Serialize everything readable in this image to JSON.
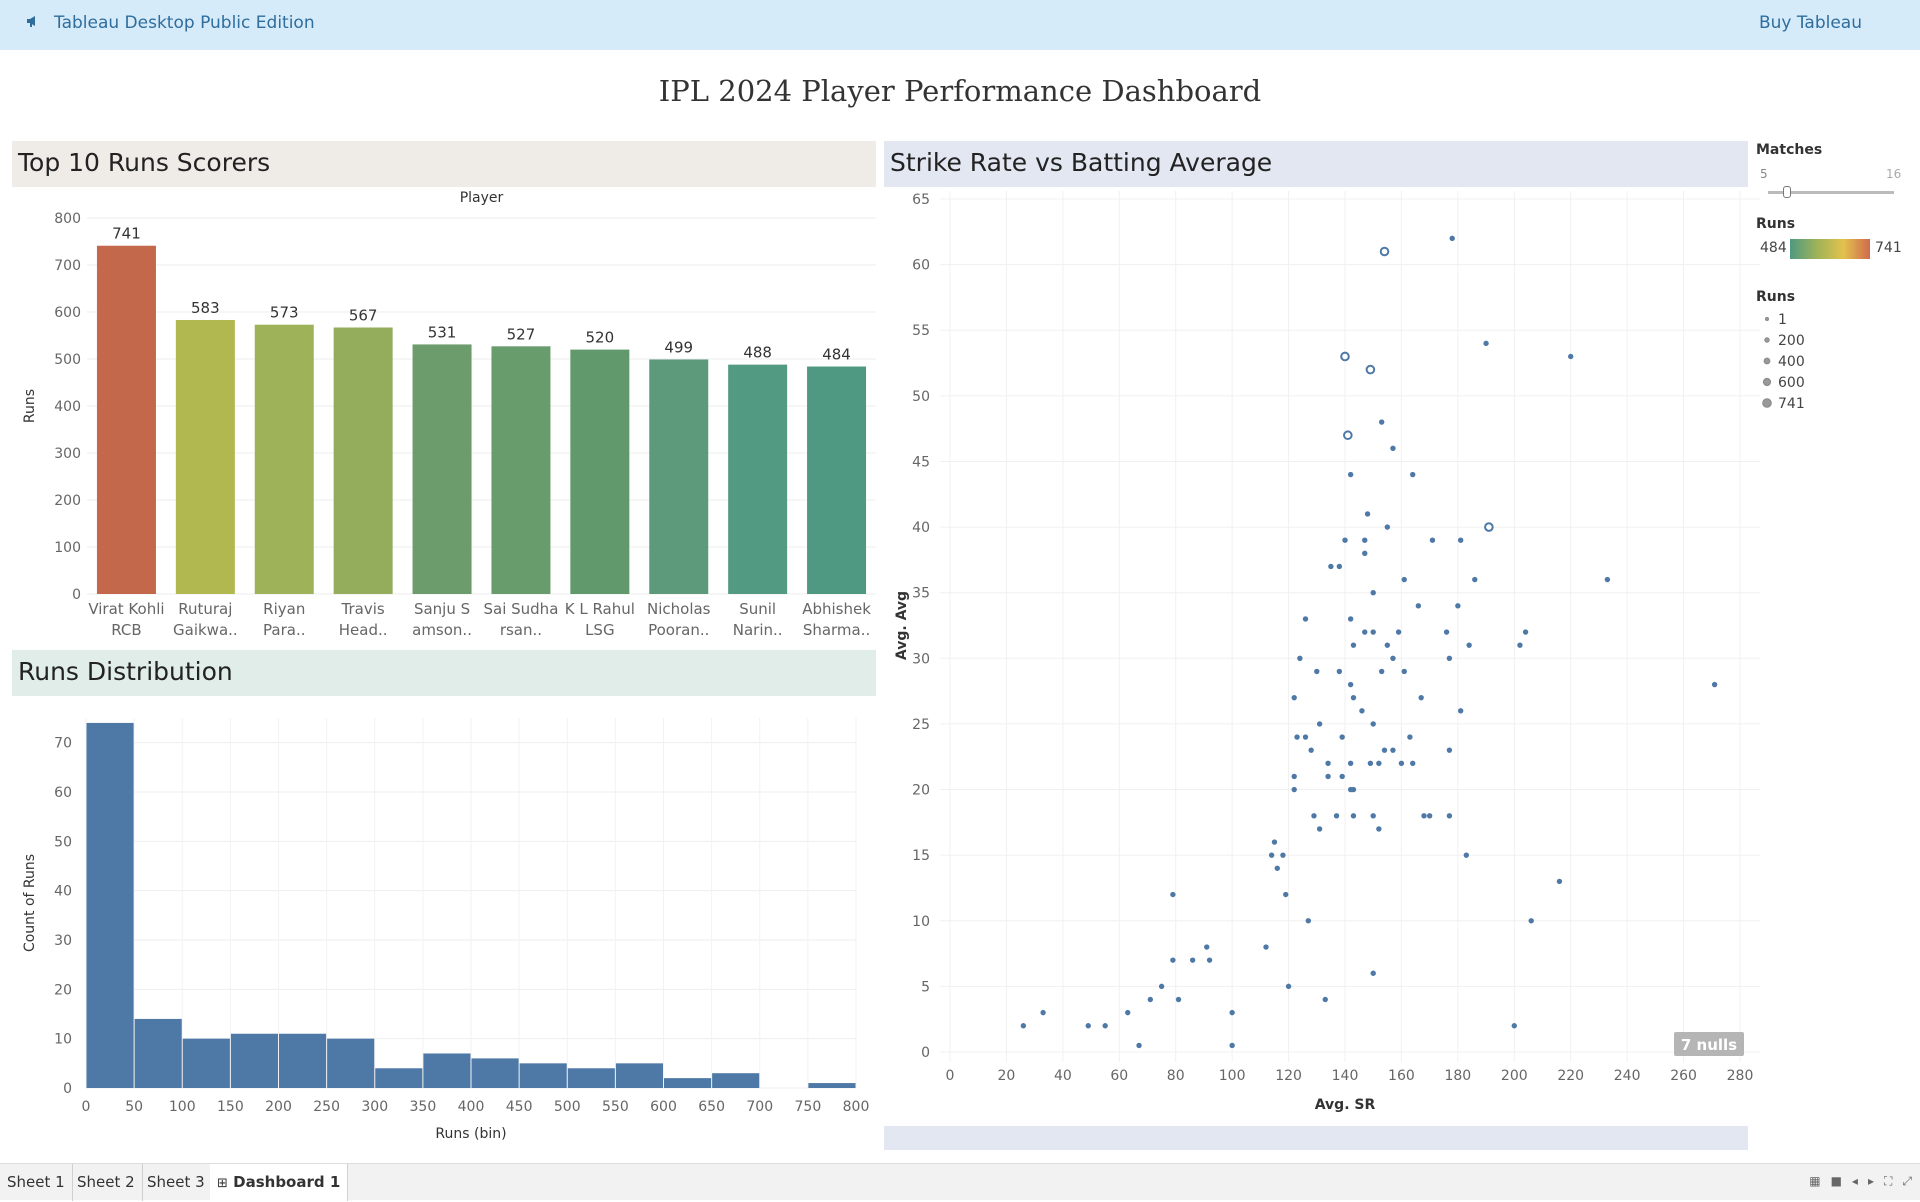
{
  "app": {
    "title": "Tableau Desktop Public Edition",
    "buy": "Buy Tableau"
  },
  "dashboard": {
    "title": "IPL 2024 Player Performance Dashboard"
  },
  "panels": {
    "top10": "Top 10 Runs Scorers",
    "scatter": "Strike Rate vs Batting Average",
    "distribution": "Runs Distribution"
  },
  "legend": {
    "matches_title": "Matches",
    "matches_min": "5",
    "matches_max": "16",
    "matches_value": 6,
    "color_title": "Runs",
    "color_min": "484",
    "color_max": "741",
    "size_title": "Runs",
    "size_items": [
      "1",
      "200",
      "400",
      "600",
      "741"
    ]
  },
  "tabs": [
    "Sheet 1",
    "Sheet 2",
    "Sheet 3",
    "Dashboard 1"
  ],
  "active_tab": "Dashboard 1",
  "colors": {
    "accent": "#2e6d9c",
    "bar": "#4e79a7",
    "scatter": "#4e79a7"
  },
  "chart_data": [
    {
      "type": "bar",
      "title": "Top 10 Runs Scorers",
      "xlabel": "Player",
      "ylabel": "Runs",
      "ylim": [
        0,
        800
      ],
      "yticks": [
        0,
        100,
        200,
        300,
        400,
        500,
        600,
        700,
        800
      ],
      "categories": [
        [
          "Virat Kohli",
          "RCB"
        ],
        [
          "Ruturaj",
          "Gaikwa.."
        ],
        [
          "Riyan",
          "Para.."
        ],
        [
          "Travis",
          "Head.."
        ],
        [
          "Sanju S",
          "amson.."
        ],
        [
          "Sai Sudha",
          "rsan.."
        ],
        [
          "K L Rahul",
          "LSG"
        ],
        [
          "Nicholas",
          "Pooran.."
        ],
        [
          "Sunil",
          "Narin.."
        ],
        [
          "Abhishek",
          "Sharma.."
        ]
      ],
      "values": [
        741,
        583,
        573,
        567,
        531,
        527,
        520,
        499,
        488,
        484
      ],
      "colors": [
        "#c4684c",
        "#b0b84f",
        "#9eb259",
        "#93ad5c",
        "#6c9c6c",
        "#699c6c",
        "#61996c",
        "#5d9a7c",
        "#539a82",
        "#4f9983"
      ]
    },
    {
      "type": "bar",
      "title": "Runs Distribution",
      "xlabel": "Runs (bin)",
      "ylabel": "Count of Runs",
      "xlim": [
        0,
        800
      ],
      "ylim": [
        0,
        75
      ],
      "xticks": [
        0,
        50,
        100,
        150,
        200,
        250,
        300,
        350,
        400,
        450,
        500,
        550,
        600,
        650,
        700,
        750,
        800
      ],
      "yticks": [
        0,
        10,
        20,
        30,
        40,
        50,
        60,
        70
      ],
      "bin_width": 50,
      "bins": [
        0,
        50,
        100,
        150,
        200,
        250,
        300,
        350,
        400,
        450,
        500,
        550,
        600,
        650,
        700,
        750
      ],
      "values": [
        74,
        14,
        10,
        11,
        11,
        10,
        4,
        7,
        6,
        5,
        4,
        5,
        2,
        3,
        0,
        1
      ]
    },
    {
      "type": "scatter",
      "title": "Strike Rate vs Batting Average",
      "xlabel": "Avg. SR",
      "ylabel": "Avg. Avg",
      "xlim": [
        0,
        280
      ],
      "ylim": [
        0,
        65
      ],
      "xticks": [
        0,
        20,
        40,
        60,
        80,
        100,
        120,
        140,
        160,
        180,
        200,
        220,
        240,
        260,
        280
      ],
      "yticks": [
        0,
        5,
        10,
        15,
        20,
        25,
        30,
        35,
        40,
        45,
        50,
        55,
        60,
        65
      ],
      "nulls_label": "7 nulls",
      "points": [
        [
          154,
          61,
          2
        ],
        [
          178,
          62,
          1
        ],
        [
          190,
          54,
          1
        ],
        [
          220,
          53,
          1
        ],
        [
          140,
          53,
          2
        ],
        [
          149,
          52,
          2
        ],
        [
          153,
          48,
          1
        ],
        [
          141,
          47,
          2
        ],
        [
          157,
          46,
          1
        ],
        [
          164,
          44,
          1
        ],
        [
          142,
          44,
          1
        ],
        [
          148,
          41,
          1
        ],
        [
          155,
          40,
          1
        ],
        [
          191,
          40,
          2
        ],
        [
          140,
          39,
          1
        ],
        [
          147,
          39,
          1
        ],
        [
          171,
          39,
          1
        ],
        [
          181,
          39,
          1
        ],
        [
          147,
          38,
          1
        ],
        [
          135,
          37,
          1
        ],
        [
          138,
          37,
          1
        ],
        [
          161,
          36,
          1
        ],
        [
          186,
          36,
          1
        ],
        [
          233,
          36,
          1
        ],
        [
          150,
          35,
          1
        ],
        [
          166,
          34,
          1
        ],
        [
          180,
          34,
          1
        ],
        [
          126,
          33,
          1
        ],
        [
          142,
          33,
          1
        ],
        [
          147,
          32,
          1
        ],
        [
          150,
          32,
          1
        ],
        [
          159,
          32,
          1
        ],
        [
          176,
          32,
          1
        ],
        [
          204,
          32,
          1
        ],
        [
          143,
          31,
          1
        ],
        [
          155,
          31,
          1
        ],
        [
          184,
          31,
          1
        ],
        [
          202,
          31,
          1
        ],
        [
          124,
          30,
          1
        ],
        [
          157,
          30,
          1
        ],
        [
          177,
          30,
          1
        ],
        [
          130,
          29,
          1
        ],
        [
          138,
          29,
          1
        ],
        [
          153,
          29,
          1
        ],
        [
          161,
          29,
          1
        ],
        [
          142,
          28,
          1
        ],
        [
          271,
          28,
          1
        ],
        [
          122,
          27,
          1
        ],
        [
          143,
          27,
          1
        ],
        [
          167,
          27,
          1
        ],
        [
          146,
          26,
          1
        ],
        [
          181,
          26,
          1
        ],
        [
          131,
          25,
          1
        ],
        [
          150,
          25,
          1
        ],
        [
          123,
          24,
          1
        ],
        [
          126,
          24,
          1
        ],
        [
          139,
          24,
          1
        ],
        [
          163,
          24,
          1
        ],
        [
          128,
          23,
          1
        ],
        [
          154,
          23,
          1
        ],
        [
          157,
          23,
          1
        ],
        [
          177,
          23,
          1
        ],
        [
          134,
          22,
          1
        ],
        [
          142,
          22,
          1
        ],
        [
          149,
          22,
          1
        ],
        [
          152,
          22,
          1
        ],
        [
          160,
          22,
          1
        ],
        [
          164,
          22,
          1
        ],
        [
          122,
          21,
          1
        ],
        [
          134,
          21,
          1
        ],
        [
          139,
          21,
          1
        ],
        [
          122,
          20,
          1
        ],
        [
          142,
          20,
          1
        ],
        [
          143,
          20,
          1
        ],
        [
          129,
          18,
          1
        ],
        [
          137,
          18,
          1
        ],
        [
          143,
          18,
          1
        ],
        [
          150,
          18,
          1
        ],
        [
          168,
          18,
          1
        ],
        [
          170,
          18,
          1
        ],
        [
          177,
          18,
          1
        ],
        [
          131,
          17,
          1
        ],
        [
          152,
          17,
          1
        ],
        [
          115,
          16,
          1
        ],
        [
          114,
          15,
          1
        ],
        [
          118,
          15,
          1
        ],
        [
          183,
          15,
          1
        ],
        [
          116,
          14,
          1
        ],
        [
          216,
          13,
          1
        ],
        [
          79,
          12,
          1
        ],
        [
          119,
          12,
          1
        ],
        [
          127,
          10,
          1
        ],
        [
          206,
          10,
          1
        ],
        [
          112,
          8,
          1
        ],
        [
          91,
          8,
          1
        ],
        [
          79,
          7,
          1
        ],
        [
          86,
          7,
          1
        ],
        [
          92,
          7,
          1
        ],
        [
          150,
          6,
          1
        ],
        [
          75,
          5,
          1
        ],
        [
          120,
          5,
          1
        ],
        [
          71,
          4,
          1
        ],
        [
          81,
          4,
          1
        ],
        [
          133,
          4,
          1
        ],
        [
          33,
          3,
          1
        ],
        [
          63,
          3,
          1
        ],
        [
          100,
          3,
          1
        ],
        [
          26,
          2,
          1
        ],
        [
          49,
          2,
          1
        ],
        [
          55,
          2,
          1
        ],
        [
          200,
          2,
          1
        ],
        [
          67,
          0.5,
          1
        ],
        [
          100,
          0.5,
          1
        ]
      ]
    }
  ]
}
